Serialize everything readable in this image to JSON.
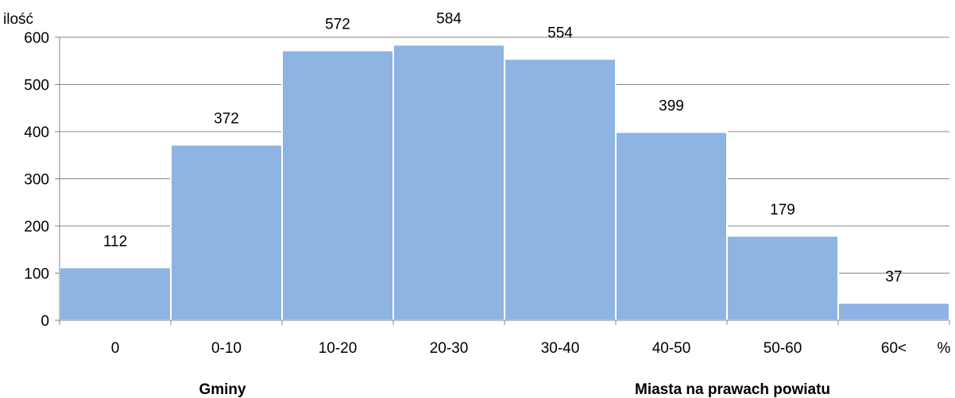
{
  "chart_data": {
    "type": "bar",
    "categories": [
      "0",
      "0-10",
      "10-20",
      "20-30",
      "30-40",
      "40-50",
      "50-60",
      "60<"
    ],
    "values": [
      112,
      372,
      572,
      584,
      554,
      399,
      179,
      37
    ],
    "data_labels": [
      "112",
      "372",
      "572",
      "584",
      "554",
      "399",
      "179",
      "37"
    ],
    "ylabel": "ilość",
    "xunit": "%",
    "ylim": [
      0,
      600
    ],
    "yticks": [
      0,
      100,
      200,
      300,
      400,
      500,
      600
    ],
    "grid": true,
    "bar_color": "#8EB4E3",
    "bar_edge_color": "#FFFFFF",
    "grid_color": "#868686",
    "group_labels": [
      "Gminy",
      "Miasta na prawach powiatu"
    ]
  }
}
